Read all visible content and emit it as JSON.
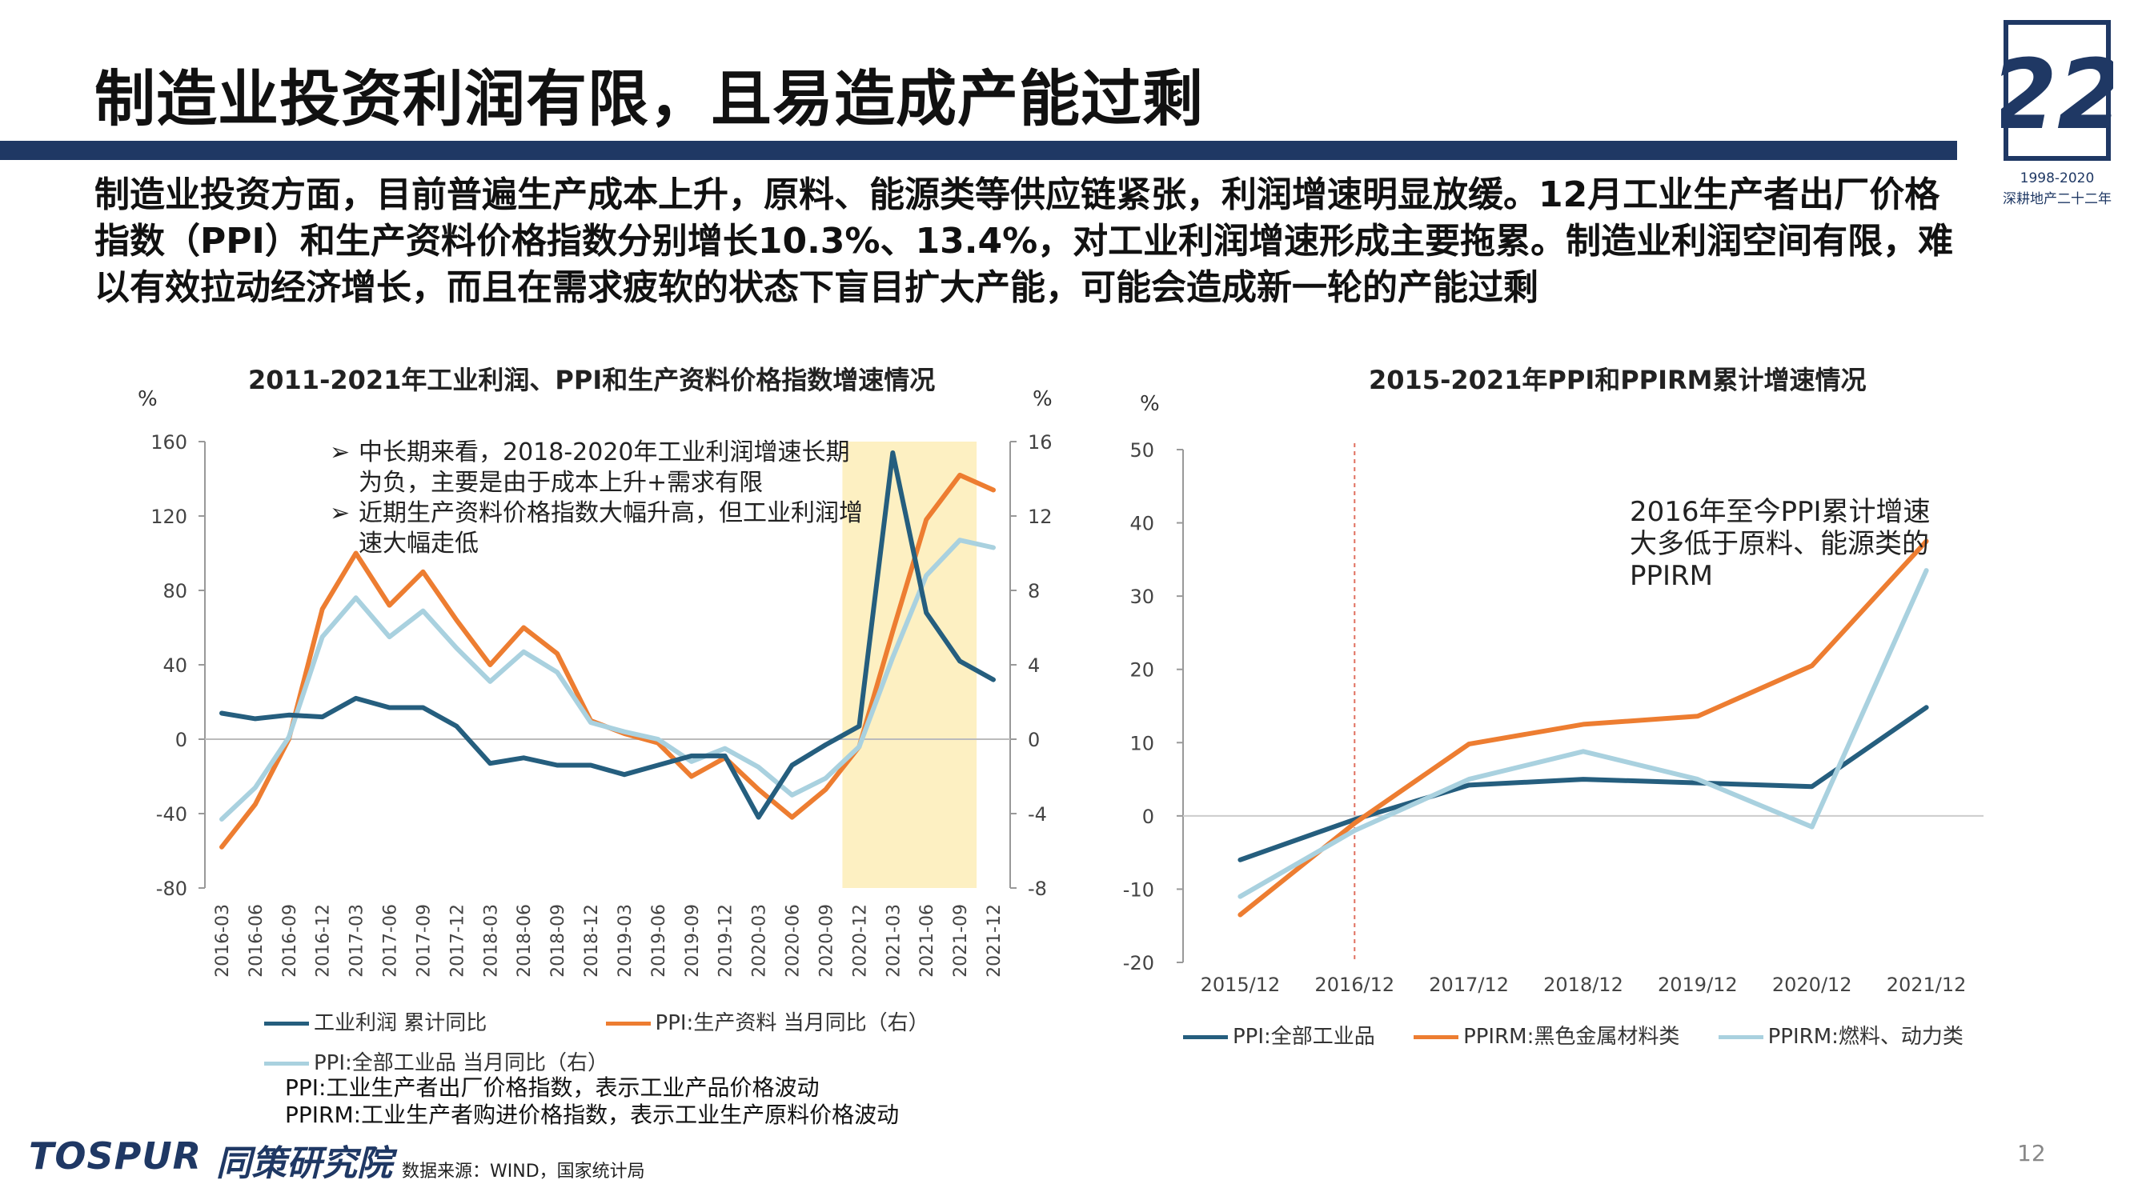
{
  "page": {
    "title": "制造业投资利润有限，且易造成产能过剩",
    "subtitle": "制造业投资方面，目前普遍生产成本上升，原料、能源类等供应链紧张，利润增速明显放缓。12月工业生产者出厂价格指数（PPI）和生产资料价格指数分别增长10.3%、13.4%，对工业利润增速形成主要拖累。制造业利润空间有限，难以有效拉动经济增长，而且在需求疲软的状态下盲目扩大产能，可能会造成新一轮的产能过剩",
    "page_number": "12",
    "source": "数据来源：WIND，国家统计局",
    "brand_en": "TOSPUR",
    "brand_cn": "同策研究院",
    "badge_years": "1998-2020",
    "badge_text": "深耕地产二十二年",
    "badge_number": "22",
    "notes": [
      "PPI:工业生产者出厂价格指数，表示工业产品价格波动",
      "PPIRM:工业生产者购进价格指数，表示工业生产原料价格波动"
    ],
    "annotation_left": [
      {
        "bullet": "➢",
        "text": "中长期来看，2018-2020年工业利润增速长期",
        "cont": "为负，主要是由于成本上升+需求有限"
      },
      {
        "bullet": "➢",
        "text": "近期生产资料价格指数大幅升高，但工业利润增",
        "cont": "速大幅走低"
      }
    ],
    "annotation_right": "2016年至今PPI累计增速大多低于原料、能源类的PPIRM"
  },
  "colors": {
    "title_bar": "#1f3864",
    "dark_blue": "#255e7e",
    "orange": "#ed7d31",
    "light_blue": "#a9d1df",
    "highlight": "#fdf0c2",
    "grid": "#d9d9d9",
    "ref_line": "#e07060"
  },
  "chart_data": [
    {
      "type": "line",
      "title": "2011-2021年工业利润、PPI和生产资料价格指数增速情况",
      "ylabel_left": "%",
      "ylabel_right": "%",
      "ylim_left": [
        -80,
        160
      ],
      "ylim_right": [
        -8,
        16
      ],
      "yticks_left": [
        "160",
        "120",
        "80",
        "40",
        "0",
        "-40",
        "-80"
      ],
      "yticks_right": [
        "16",
        "12",
        "8",
        "4",
        "0",
        "-4",
        "-8"
      ],
      "categories": [
        "2016-03",
        "2016-06",
        "2016-09",
        "2016-12",
        "2017-03",
        "2017-06",
        "2017-09",
        "2017-12",
        "2018-03",
        "2018-06",
        "2018-09",
        "2018-12",
        "2019-03",
        "2019-06",
        "2019-09",
        "2019-12",
        "2020-03",
        "2020-06",
        "2020-09",
        "2020-12",
        "2021-03",
        "2021-06",
        "2021-09",
        "2021-12"
      ],
      "highlight_range": [
        "2020-12",
        "2021-09"
      ],
      "series": [
        {
          "name": "工业利润 累计同比",
          "axis": "left",
          "color_key": "dark_blue",
          "values": [
            14,
            11,
            13,
            12,
            22,
            17,
            17,
            7,
            -13,
            -10,
            -14,
            -14,
            -19,
            -14,
            -9,
            -9,
            -42,
            -14,
            -3,
            7,
            154,
            68,
            42,
            32
          ]
        },
        {
          "name": "PPI:生产资料 当月同比（右）",
          "axis": "right",
          "color_key": "orange",
          "values": [
            -5.8,
            -3.5,
            0,
            7.0,
            10.0,
            7.2,
            9.0,
            6.4,
            4.0,
            6.0,
            4.6,
            1.0,
            0.3,
            -0.2,
            -2.0,
            -1.0,
            -2.7,
            -4.2,
            -2.7,
            -0.4,
            5.8,
            11.8,
            14.2,
            13.4
          ]
        },
        {
          "name": "PPI:全部工业品 当月同比（右）",
          "axis": "right",
          "color_key": "light_blue",
          "values": [
            -4.3,
            -2.6,
            0.1,
            5.5,
            7.6,
            5.5,
            6.9,
            4.9,
            3.1,
            4.7,
            3.6,
            0.9,
            0.4,
            0,
            -1.2,
            -0.5,
            -1.5,
            -3.0,
            -2.1,
            -0.4,
            4.4,
            8.8,
            10.7,
            10.3
          ]
        }
      ]
    },
    {
      "type": "line",
      "title": "2015-2021年PPI和PPIRM累计增速情况",
      "ylabel": "%",
      "ylim": [
        -20,
        50
      ],
      "yticks": [
        "50",
        "40",
        "30",
        "20",
        "10",
        "0",
        "-10",
        "-20"
      ],
      "categories": [
        "2015/12",
        "2016/12",
        "2017/12",
        "2018/12",
        "2019/12",
        "2020/12",
        "2021/12"
      ],
      "reference_line": "2016/12",
      "series": [
        {
          "name": "PPI:全部工业品",
          "color_key": "dark_blue",
          "values": [
            -6,
            -0.5,
            4.2,
            5.0,
            4.5,
            4.0,
            14.8
          ]
        },
        {
          "name": "PPIRM:黑色金属材料类",
          "color_key": "orange",
          "values": [
            -13.5,
            -1,
            9.8,
            12.5,
            13.6,
            20.5,
            37.5
          ]
        },
        {
          "name": "PPIRM:燃料、动力类",
          "color_key": "light_blue",
          "values": [
            -11,
            -2,
            5.0,
            8.8,
            5.0,
            -1.5,
            33.5
          ]
        }
      ]
    }
  ]
}
